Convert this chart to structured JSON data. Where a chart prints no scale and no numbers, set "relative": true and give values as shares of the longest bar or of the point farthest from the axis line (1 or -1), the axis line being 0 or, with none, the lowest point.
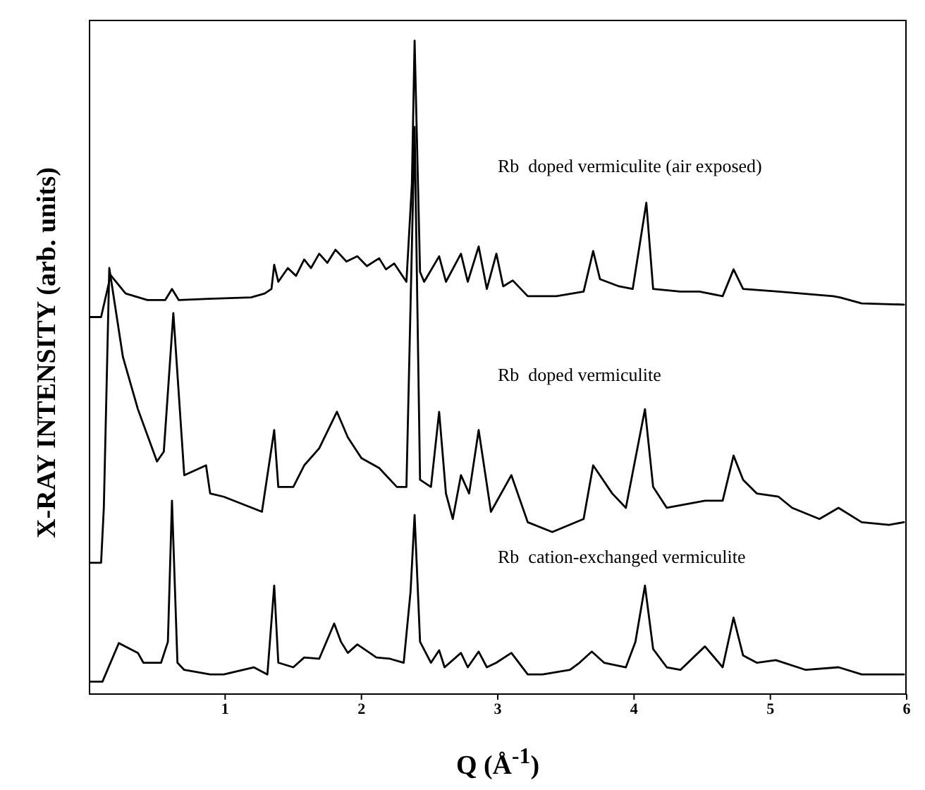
{
  "chart_data": {
    "type": "line",
    "relative": true,
    "xlabel": "Q (Å$^{-1}$)",
    "ylabel": "X-RAY INTENSITY (arb. units)",
    "xlim": [
      0,
      6
    ],
    "xticks": [
      1,
      2,
      3,
      4,
      5,
      6
    ],
    "marker": "none",
    "line_style": "solid",
    "series": [
      {
        "name": "Rb  doped vermiculite (air exposed)",
        "color": "#000000",
        "x": [
          0,
          0.09,
          0.16,
          0.27,
          0.43,
          0.56,
          0.61,
          0.66,
          0.88,
          1.19,
          1.29,
          1.34,
          1.36,
          1.39,
          1.46,
          1.52,
          1.58,
          1.63,
          1.69,
          1.75,
          1.81,
          1.89,
          1.97,
          2.04,
          2.13,
          2.18,
          2.24,
          2.33,
          2.37,
          2.39,
          2.43,
          2.46,
          2.57,
          2.62,
          2.73,
          2.78,
          2.86,
          2.92,
          2.99,
          3.04,
          3.11,
          3.22,
          3.43,
          3.63,
          3.7,
          3.75,
          3.89,
          3.99,
          4.09,
          4.14,
          4.34,
          4.48,
          4.65,
          4.73,
          4.8,
          5.06,
          5.46,
          5.51,
          5.67,
          5.98
        ],
        "values": [
          0.577,
          0.577,
          0.641,
          0.613,
          0.603,
          0.603,
          0.62,
          0.603,
          0.605,
          0.607,
          0.613,
          0.62,
          0.657,
          0.631,
          0.652,
          0.64,
          0.665,
          0.652,
          0.674,
          0.66,
          0.68,
          0.662,
          0.67,
          0.655,
          0.667,
          0.65,
          0.659,
          0.631,
          0.78,
          1.0,
          0.646,
          0.631,
          0.67,
          0.631,
          0.674,
          0.631,
          0.685,
          0.62,
          0.674,
          0.624,
          0.633,
          0.609,
          0.609,
          0.616,
          0.678,
          0.635,
          0.624,
          0.62,
          0.752,
          0.62,
          0.616,
          0.616,
          0.609,
          0.65,
          0.62,
          0.616,
          0.609,
          0.607,
          0.598,
          0.596
        ]
      },
      {
        "name": "Rb  doped vermiculite",
        "color": "#000000",
        "x": [
          0,
          0.09,
          0.11,
          0.15,
          0.25,
          0.36,
          0.5,
          0.55,
          0.62,
          0.7,
          0.86,
          0.89,
          0.99,
          1.27,
          1.36,
          1.39,
          1.5,
          1.58,
          1.69,
          1.82,
          1.9,
          2.0,
          2.13,
          2.26,
          2.33,
          2.39,
          2.43,
          2.51,
          2.57,
          2.62,
          2.67,
          2.73,
          2.79,
          2.86,
          2.95,
          3.1,
          3.22,
          3.4,
          3.63,
          3.7,
          3.84,
          3.94,
          4.08,
          4.14,
          4.24,
          4.52,
          4.65,
          4.73,
          4.8,
          4.9,
          5.06,
          5.16,
          5.36,
          5.5,
          5.67,
          5.87,
          5.98
        ],
        "values": [
          0.201,
          0.201,
          0.285,
          0.652,
          0.516,
          0.436,
          0.356,
          0.371,
          0.583,
          0.335,
          0.35,
          0.307,
          0.302,
          0.279,
          0.404,
          0.317,
          0.317,
          0.35,
          0.376,
          0.432,
          0.393,
          0.361,
          0.346,
          0.317,
          0.317,
          0.868,
          0.328,
          0.317,
          0.432,
          0.307,
          0.268,
          0.335,
          0.307,
          0.404,
          0.279,
          0.335,
          0.263,
          0.248,
          0.268,
          0.35,
          0.307,
          0.285,
          0.436,
          0.317,
          0.285,
          0.296,
          0.296,
          0.365,
          0.328,
          0.307,
          0.302,
          0.285,
          0.268,
          0.285,
          0.263,
          0.259,
          0.263
        ]
      },
      {
        "name": "Rb  cation-exchanged vermiculite",
        "color": "#000000",
        "x": [
          0,
          0.1,
          0.22,
          0.36,
          0.4,
          0.53,
          0.58,
          0.61,
          0.65,
          0.7,
          0.89,
          0.99,
          1.21,
          1.31,
          1.36,
          1.39,
          1.5,
          1.58,
          1.69,
          1.8,
          1.85,
          1.9,
          1.97,
          2.11,
          2.21,
          2.31,
          2.36,
          2.39,
          2.43,
          2.51,
          2.57,
          2.61,
          2.73,
          2.78,
          2.86,
          2.92,
          2.99,
          3.1,
          3.22,
          3.33,
          3.53,
          3.6,
          3.69,
          3.78,
          3.94,
          4.01,
          4.08,
          4.14,
          4.24,
          4.34,
          4.52,
          4.65,
          4.73,
          4.8,
          4.9,
          5.04,
          5.26,
          5.5,
          5.67,
          5.98
        ],
        "values": [
          0.019,
          0.019,
          0.078,
          0.063,
          0.048,
          0.048,
          0.08,
          0.296,
          0.048,
          0.037,
          0.03,
          0.03,
          0.041,
          0.03,
          0.166,
          0.048,
          0.041,
          0.056,
          0.054,
          0.108,
          0.08,
          0.063,
          0.076,
          0.056,
          0.054,
          0.048,
          0.156,
          0.274,
          0.08,
          0.048,
          0.067,
          0.041,
          0.063,
          0.041,
          0.065,
          0.041,
          0.048,
          0.063,
          0.03,
          0.03,
          0.037,
          0.048,
          0.065,
          0.048,
          0.041,
          0.08,
          0.166,
          0.069,
          0.041,
          0.037,
          0.073,
          0.041,
          0.117,
          0.059,
          0.048,
          0.052,
          0.037,
          0.041,
          0.03,
          0.03
        ]
      }
    ]
  }
}
